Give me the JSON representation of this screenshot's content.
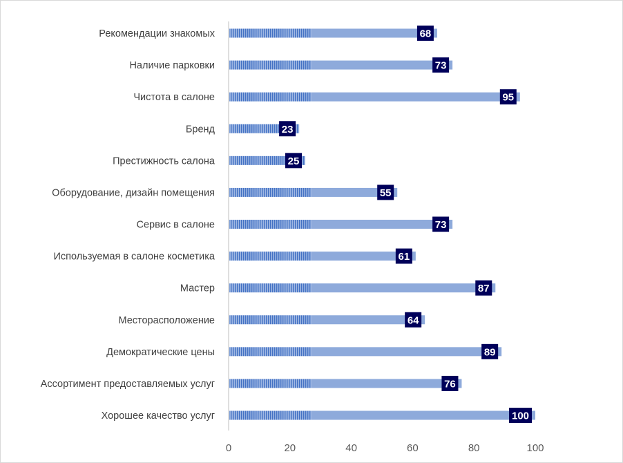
{
  "chart_data": {
    "type": "bar",
    "orientation": "horizontal",
    "title": "",
    "xlabel": "",
    "ylabel": "",
    "xlim": [
      0,
      100
    ],
    "xticks": [
      "0",
      "20",
      "40",
      "60",
      "80",
      "100"
    ],
    "grid": false,
    "categories": [
      "Рекомендации знакомых",
      "Наличие парковки",
      "Чистота в салоне",
      "Бренд",
      "Престижность салона",
      "Оборудование, дизайн помещения",
      "Сервис в салоне",
      "Используемая в салоне косметика",
      "Мастер",
      "Месторасположение",
      "Демократические цены",
      "Ассортимент предоставляемых услуг",
      "Хорошее качество услуг"
    ],
    "series": [
      {
        "values": [
          68,
          73,
          95,
          23,
          25,
          55,
          73,
          61,
          87,
          64,
          89,
          76,
          100
        ],
        "data_labels": [
          "68",
          "73",
          "95",
          "23",
          "25",
          "55",
          "73",
          "61",
          "87",
          "64",
          "89",
          "76",
          "100"
        ]
      }
    ],
    "colors": {
      "bar": "#8eaadb",
      "bar_stripe": "#4472c4",
      "label_box": "#00005a",
      "label_text": "#ffffff",
      "axis": "#bfbfbf",
      "text": "#404040"
    }
  }
}
